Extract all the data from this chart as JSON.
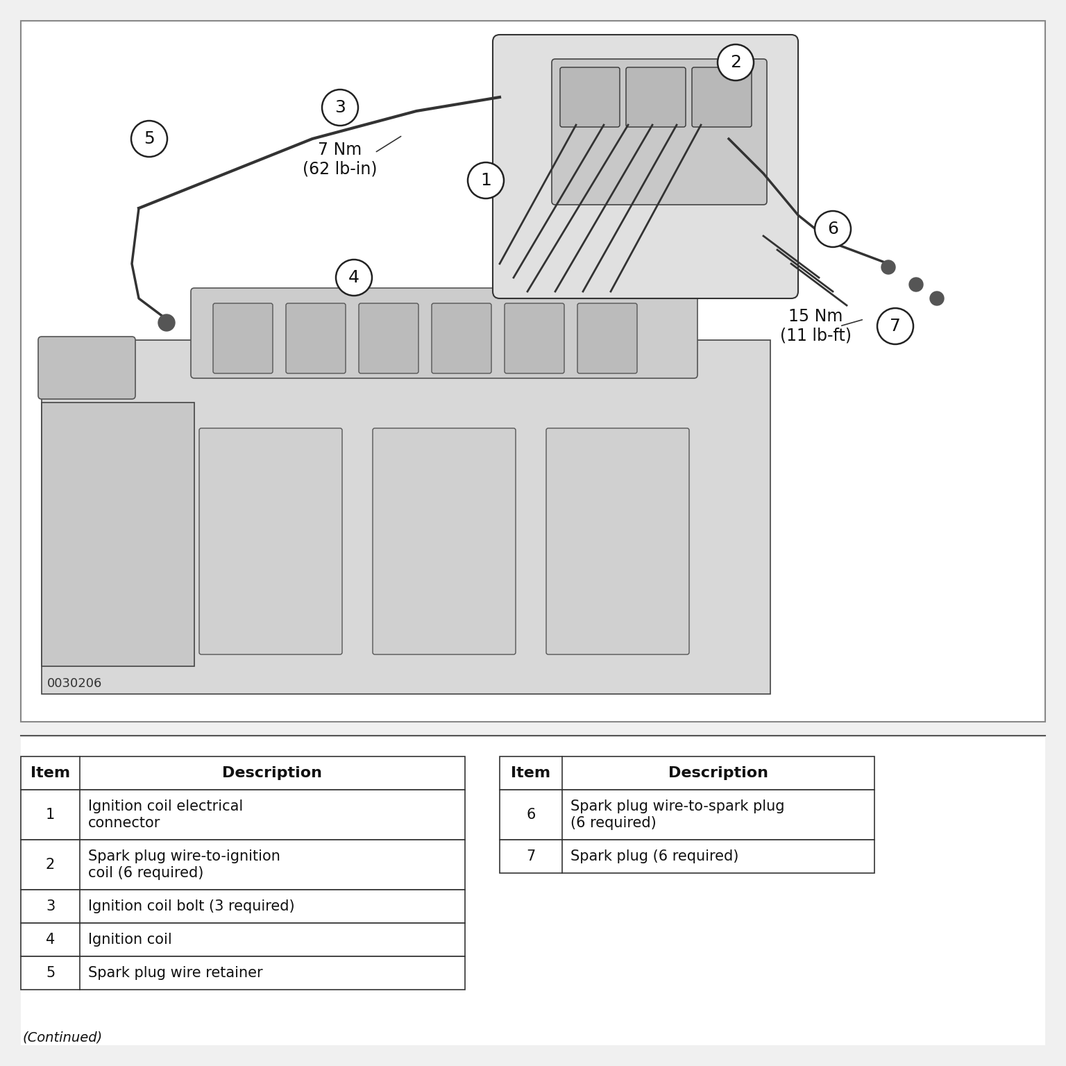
{
  "bg_color": "#f0f0f0",
  "white": "#ffffff",
  "black": "#000000",
  "light_gray": "#e8e8e8",
  "table1": {
    "headers": [
      "Item",
      "Description"
    ],
    "rows": [
      [
        "1",
        "Ignition coil electrical\nconnector"
      ],
      [
        "2",
        "Spark plug wire-to-ignition\ncoil (6 required)"
      ],
      [
        "3",
        "Ignition coil bolt (3 required)"
      ],
      [
        "4",
        "Ignition coil"
      ],
      [
        "5",
        "Spark plug wire retainer"
      ]
    ]
  },
  "table2": {
    "headers": [
      "Item",
      "Description"
    ],
    "rows": [
      [
        "6",
        "Spark plug wire-to-spark plug\n(6 required)"
      ],
      [
        "7",
        "Spark plug (6 required)"
      ]
    ]
  },
  "torque1": "7 Nm\n(62 lb-in)",
  "torque2": "15 Nm\n(11 lb-ft)",
  "watermark": "0030206",
  "continued_text": "(Continued)"
}
